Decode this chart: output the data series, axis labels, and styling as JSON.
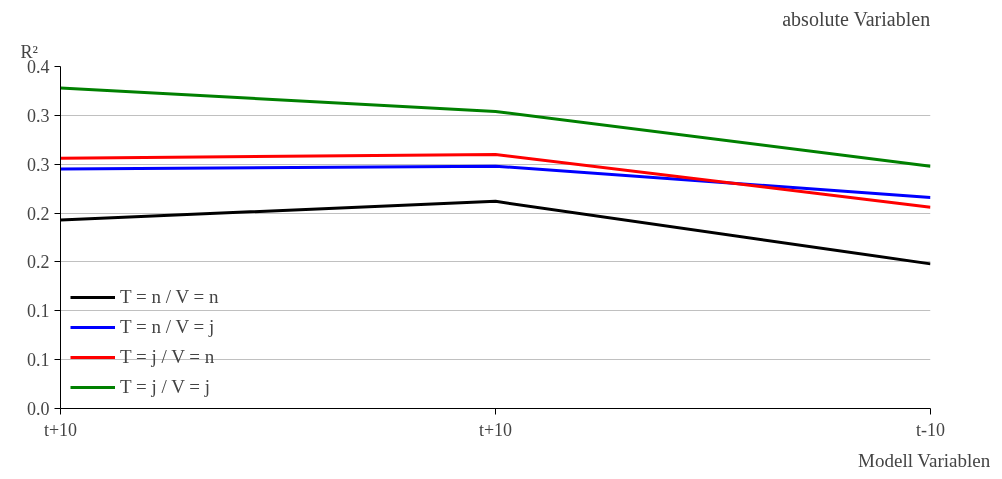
{
  "chart_data": {
    "type": "line",
    "title": "absolute Variablen",
    "ylabel": "R²",
    "xlabel": "Modell Variablen",
    "categories": [
      "t+10",
      "t+10",
      "t-10"
    ],
    "series": [
      {
        "name": "T = n / V = n",
        "color": "#000000",
        "values": [
          0.193,
          0.212,
          0.148
        ]
      },
      {
        "name": "T = n / V = j",
        "color": "#0000ff",
        "values": [
          0.245,
          0.248,
          0.216
        ]
      },
      {
        "name": "T = j / V = n",
        "color": "#ff0000",
        "values": [
          0.256,
          0.26,
          0.206
        ]
      },
      {
        "name": "T = j / V = j",
        "color": "#008000",
        "values": [
          0.328,
          0.304,
          0.248
        ]
      }
    ],
    "ylim": [
      0,
      0.35
    ],
    "yticks": [
      {
        "value": 0,
        "label": "0.0"
      },
      {
        "value": 0.05,
        "label": "0.1"
      },
      {
        "value": 0.1,
        "label": "0.1"
      },
      {
        "value": 0.15,
        "label": "0.2"
      },
      {
        "value": 0.2,
        "label": "0.2"
      },
      {
        "value": 0.25,
        "label": "0.3"
      },
      {
        "value": 0.3,
        "label": "0.3"
      },
      {
        "value": 0.35,
        "label": "0.4"
      }
    ],
    "grid": "y",
    "legend": "bottom left",
    "marker": "none",
    "line_style": "solid"
  }
}
